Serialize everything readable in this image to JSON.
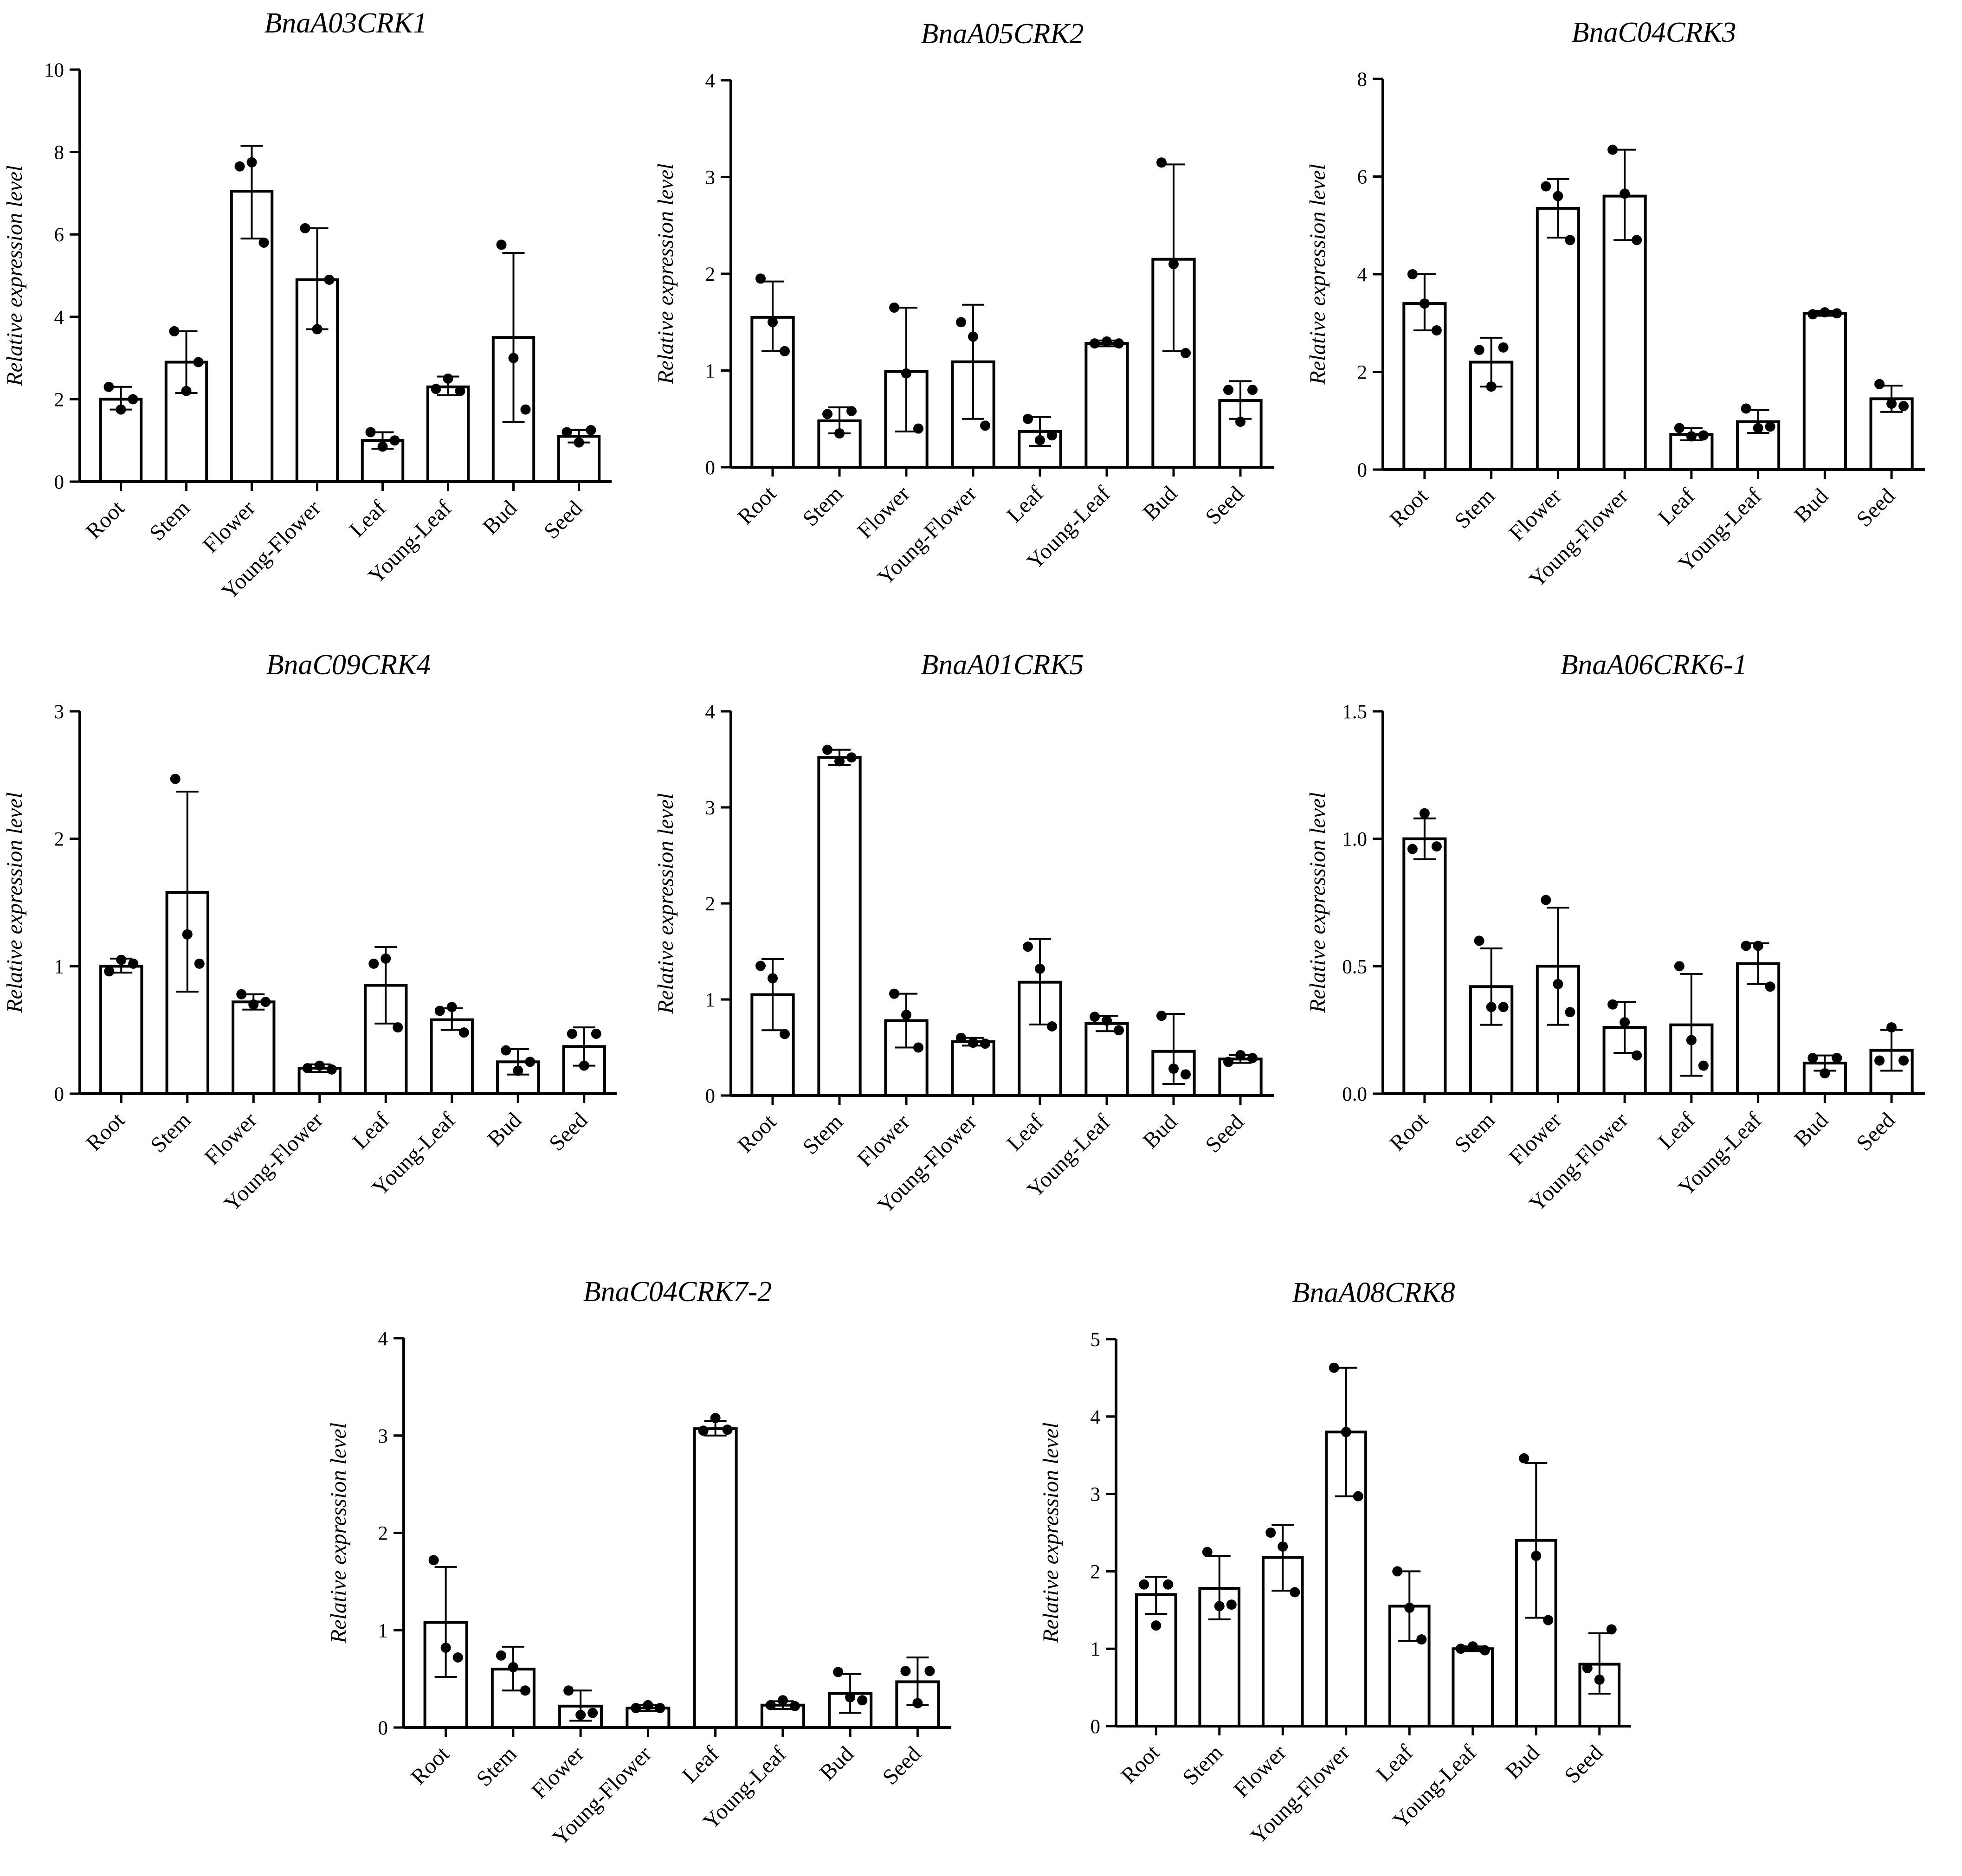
{
  "figure": {
    "background": "#ffffff",
    "bar_fill": "#ffffff",
    "line_color": "#000000"
  },
  "chart_data": [
    {
      "type": "bar",
      "title": "BnaA03CRK1",
      "ylabel": "Relative expression level",
      "xlabel": "",
      "ylim": [
        0,
        10
      ],
      "yticks": [
        "0",
        "2",
        "4",
        "6",
        "8",
        "10"
      ],
      "categories": [
        "Root",
        "Stem",
        "Flower",
        "Young-Flower",
        "Leaf",
        "Young-Leaf",
        "Bud",
        "Seed"
      ],
      "values": [
        2.0,
        2.9,
        7.05,
        4.9,
        1.0,
        2.3,
        3.5,
        1.1
      ],
      "error_low": [
        1.75,
        2.15,
        5.9,
        3.7,
        0.8,
        2.1,
        1.45,
        0.95
      ],
      "error_high": [
        2.3,
        3.65,
        8.15,
        6.15,
        1.2,
        2.55,
        5.55,
        1.25
      ],
      "points": [
        [
          2.3,
          1.75,
          2.0
        ],
        [
          3.65,
          2.2,
          2.9
        ],
        [
          7.65,
          7.75,
          5.8
        ],
        [
          6.15,
          3.7,
          4.9
        ],
        [
          1.2,
          0.85,
          1.0
        ],
        [
          2.25,
          2.5,
          2.2
        ],
        [
          5.75,
          3.0,
          1.75
        ],
        [
          1.2,
          0.95,
          1.25
        ]
      ]
    },
    {
      "type": "bar",
      "title": "BnaA05CRK2",
      "ylabel": "Relative expression level",
      "xlabel": "",
      "ylim": [
        0,
        4
      ],
      "yticks": [
        "0",
        "1",
        "2",
        "3",
        "4"
      ],
      "categories": [
        "Root",
        "Stem",
        "Flower",
        "Young-Flower",
        "Leaf",
        "Young-Leaf",
        "Bud",
        "Seed"
      ],
      "values": [
        1.55,
        0.48,
        0.99,
        1.09,
        0.37,
        1.28,
        2.15,
        0.69
      ],
      "error_low": [
        1.2,
        0.35,
        0.37,
        0.5,
        0.22,
        1.25,
        1.2,
        0.5
      ],
      "error_high": [
        1.92,
        0.62,
        1.65,
        1.68,
        0.52,
        1.31,
        3.13,
        0.89
      ],
      "points": [
        [
          1.95,
          1.5,
          1.2
        ],
        [
          0.55,
          0.35,
          0.58
        ],
        [
          1.65,
          0.97,
          0.4
        ],
        [
          1.5,
          1.35,
          0.43
        ],
        [
          0.5,
          0.28,
          0.33
        ],
        [
          1.28,
          1.3,
          1.28
        ],
        [
          3.15,
          2.1,
          1.18
        ],
        [
          0.8,
          0.47,
          0.8
        ]
      ]
    },
    {
      "type": "bar",
      "title": "BnaC04CRK3",
      "ylabel": "Relative expression level",
      "xlabel": "",
      "ylim": [
        0,
        8
      ],
      "yticks": [
        "0",
        "2",
        "4",
        "6",
        "8"
      ],
      "categories": [
        "Root",
        "Stem",
        "Flower",
        "Young-Flower",
        "Leaf",
        "Young-Leaf",
        "Bud",
        "Seed"
      ],
      "values": [
        3.4,
        2.2,
        5.35,
        5.6,
        0.72,
        0.98,
        3.2,
        1.45
      ],
      "error_low": [
        2.85,
        1.7,
        4.75,
        4.7,
        0.6,
        0.75,
        3.15,
        1.18
      ],
      "error_high": [
        4.0,
        2.7,
        5.95,
        6.55,
        0.85,
        1.22,
        3.25,
        1.72
      ],
      "points": [
        [
          4.0,
          3.4,
          2.85
        ],
        [
          2.45,
          1.7,
          2.5
        ],
        [
          5.8,
          5.6,
          4.7
        ],
        [
          6.55,
          5.65,
          4.7
        ],
        [
          0.85,
          0.68,
          0.7
        ],
        [
          1.25,
          0.85,
          0.88
        ],
        [
          3.18,
          3.22,
          3.2
        ],
        [
          1.75,
          1.35,
          1.3
        ]
      ]
    },
    {
      "type": "bar",
      "title": "BnaC09CRK4",
      "ylabel": "Relative expression level",
      "xlabel": "",
      "ylim": [
        0,
        3
      ],
      "yticks": [
        "0",
        "1",
        "2",
        "3"
      ],
      "categories": [
        "Root",
        "Stem",
        "Flower",
        "Young-Flower",
        "Leaf",
        "Young-Leaf",
        "Bud",
        "Seed"
      ],
      "values": [
        1.0,
        1.58,
        0.72,
        0.2,
        0.85,
        0.58,
        0.25,
        0.37
      ],
      "error_low": [
        0.95,
        0.8,
        0.66,
        0.17,
        0.55,
        0.5,
        0.15,
        0.22
      ],
      "error_high": [
        1.06,
        2.37,
        0.78,
        0.23,
        1.15,
        0.67,
        0.35,
        0.52
      ],
      "points": [
        [
          0.96,
          1.05,
          1.02
        ],
        [
          2.47,
          1.25,
          1.02
        ],
        [
          0.78,
          0.7,
          0.72
        ],
        [
          0.2,
          0.22,
          0.19
        ],
        [
          1.02,
          1.06,
          0.52
        ],
        [
          0.65,
          0.68,
          0.48
        ],
        [
          0.34,
          0.18,
          0.25
        ],
        [
          0.47,
          0.22,
          0.47
        ]
      ]
    },
    {
      "type": "bar",
      "title": "BnaA01CRK5",
      "ylabel": "Relative expression level",
      "xlabel": "",
      "ylim": [
        0,
        4
      ],
      "yticks": [
        "0",
        "1",
        "2",
        "3",
        "4"
      ],
      "categories": [
        "Root",
        "Stem",
        "Flower",
        "Young-Flower",
        "Leaf",
        "Young-Leaf",
        "Bud",
        "Seed"
      ],
      "values": [
        1.05,
        3.52,
        0.78,
        0.56,
        1.18,
        0.75,
        0.46,
        0.38
      ],
      "error_low": [
        0.68,
        3.44,
        0.5,
        0.52,
        0.74,
        0.67,
        0.12,
        0.34
      ],
      "error_high": [
        1.42,
        3.6,
        1.06,
        0.6,
        1.63,
        0.83,
        0.85,
        0.42
      ],
      "points": [
        [
          1.35,
          1.22,
          0.64
        ],
        [
          3.6,
          3.48,
          3.52
        ],
        [
          1.06,
          0.84,
          0.5
        ],
        [
          0.6,
          0.55,
          0.54
        ],
        [
          1.55,
          1.32,
          0.72
        ],
        [
          0.82,
          0.78,
          0.68
        ],
        [
          0.83,
          0.28,
          0.22
        ],
        [
          0.35,
          0.42,
          0.39
        ]
      ]
    },
    {
      "type": "bar",
      "title": "BnaA06CRK6-1",
      "ylabel": "Relative expression level",
      "xlabel": "",
      "ylim": [
        0,
        1.5
      ],
      "yticks": [
        "0.0",
        "0.5",
        "1.0",
        "1.5"
      ],
      "categories": [
        "Root",
        "Stem",
        "Flower",
        "Young-Flower",
        "Leaf",
        "Young-Leaf",
        "Bud",
        "Seed"
      ],
      "values": [
        1.0,
        0.42,
        0.5,
        0.26,
        0.27,
        0.51,
        0.12,
        0.17
      ],
      "error_low": [
        0.92,
        0.27,
        0.27,
        0.16,
        0.07,
        0.43,
        0.09,
        0.09
      ],
      "error_high": [
        1.08,
        0.57,
        0.73,
        0.36,
        0.47,
        0.59,
        0.15,
        0.25
      ],
      "points": [
        [
          0.96,
          1.1,
          0.97
        ],
        [
          0.6,
          0.34,
          0.34
        ],
        [
          0.76,
          0.43,
          0.32
        ],
        [
          0.35,
          0.28,
          0.15
        ],
        [
          0.5,
          0.21,
          0.11
        ],
        [
          0.58,
          0.58,
          0.42
        ],
        [
          0.14,
          0.08,
          0.14
        ],
        [
          0.13,
          0.26,
          0.13
        ]
      ]
    },
    {
      "type": "bar",
      "title": "BnaC04CRK7-2",
      "ylabel": "Relative expression level",
      "xlabel": "",
      "ylim": [
        0,
        4
      ],
      "yticks": [
        "0",
        "1",
        "2",
        "3",
        "4"
      ],
      "categories": [
        "Root",
        "Stem",
        "Flower",
        "Young-Flower",
        "Leaf",
        "Young-Leaf",
        "Bud",
        "Seed"
      ],
      "values": [
        1.08,
        0.6,
        0.22,
        0.2,
        3.07,
        0.23,
        0.35,
        0.47
      ],
      "error_low": [
        0.52,
        0.38,
        0.07,
        0.17,
        3.0,
        0.19,
        0.15,
        0.23
      ],
      "error_high": [
        1.65,
        0.83,
        0.38,
        0.23,
        3.15,
        0.27,
        0.55,
        0.72
      ],
      "points": [
        [
          1.72,
          0.82,
          0.72
        ],
        [
          0.74,
          0.62,
          0.38
        ],
        [
          0.38,
          0.13,
          0.15
        ],
        [
          0.2,
          0.23,
          0.2
        ],
        [
          3.05,
          3.18,
          3.06
        ],
        [
          0.23,
          0.28,
          0.22
        ],
        [
          0.57,
          0.31,
          0.28
        ],
        [
          0.58,
          0.25,
          0.58
        ]
      ]
    },
    {
      "type": "bar",
      "title": "BnaA08CRK8",
      "ylabel": "Relative expression level",
      "xlabel": "",
      "ylim": [
        0,
        5
      ],
      "yticks": [
        "0",
        "1",
        "2",
        "3",
        "4",
        "5"
      ],
      "categories": [
        "Root",
        "Stem",
        "Flower",
        "Young-Flower",
        "Leaf",
        "Young-Leaf",
        "Bud",
        "Seed"
      ],
      "values": [
        1.7,
        1.78,
        2.18,
        3.8,
        1.55,
        1.0,
        2.4,
        0.8
      ],
      "error_low": [
        1.45,
        1.38,
        1.75,
        2.97,
        1.1,
        0.97,
        1.4,
        0.42
      ],
      "error_high": [
        1.93,
        2.2,
        2.6,
        4.63,
        2.0,
        1.03,
        3.4,
        1.2
      ],
      "points": [
        [
          1.83,
          1.3,
          1.83
        ],
        [
          2.25,
          1.55,
          1.57
        ],
        [
          2.5,
          2.32,
          1.73
        ],
        [
          4.63,
          3.8,
          2.97
        ],
        [
          2.0,
          1.53,
          1.12
        ],
        [
          1.0,
          1.03,
          0.98
        ],
        [
          3.46,
          2.2,
          1.37
        ],
        [
          0.75,
          0.6,
          1.25
        ]
      ]
    }
  ]
}
